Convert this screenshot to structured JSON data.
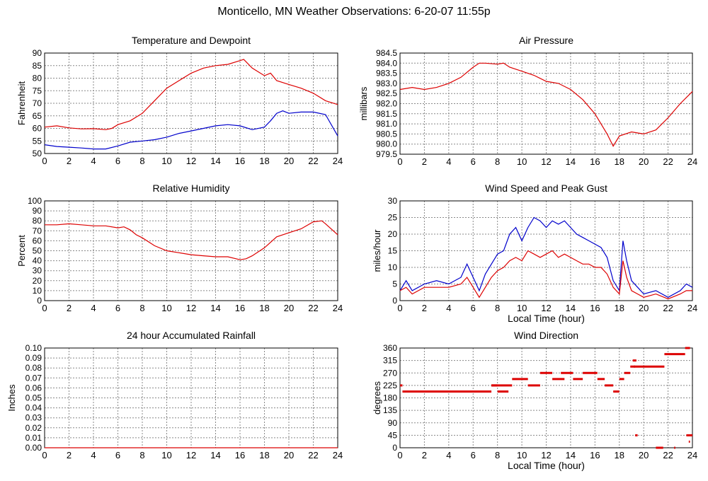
{
  "page": {
    "title": "Monticello, MN Weather Observations: 6-20-07 11:55p"
  },
  "colors": {
    "red": "#dd0000",
    "blue": "#0000cc",
    "grid": "#888888",
    "axis": "#000000"
  },
  "chart_data": [
    {
      "id": "temp",
      "type": "line",
      "title": "Temperature and Dewpoint",
      "xlabel": "",
      "ylabel": "Fahrenheit",
      "xlim": [
        0,
        24
      ],
      "ylim": [
        50,
        90
      ],
      "xticks": [
        0,
        2,
        4,
        6,
        8,
        10,
        12,
        14,
        16,
        18,
        20,
        22,
        24
      ],
      "yticks": [
        "50",
        "55",
        "60",
        "65",
        "70",
        "75",
        "80",
        "85",
        "90"
      ],
      "grid": true,
      "series": [
        {
          "color": "red",
          "points": [
            [
              0,
              60.5
            ],
            [
              1,
              61
            ],
            [
              2,
              60.2
            ],
            [
              3,
              59.8
            ],
            [
              4,
              59.9
            ],
            [
              5,
              59.5
            ],
            [
              5.5,
              60
            ],
            [
              6,
              61.5
            ],
            [
              7,
              63
            ],
            [
              8,
              66
            ],
            [
              9,
              71
            ],
            [
              10,
              76
            ],
            [
              11,
              79
            ],
            [
              12,
              82
            ],
            [
              13,
              84
            ],
            [
              14,
              85
            ],
            [
              15,
              85.5
            ],
            [
              16,
              87
            ],
            [
              16.3,
              87.5
            ],
            [
              17,
              84
            ],
            [
              18,
              81
            ],
            [
              18.5,
              82
            ],
            [
              19,
              79
            ],
            [
              20,
              77.5
            ],
            [
              21,
              76
            ],
            [
              22,
              74
            ],
            [
              23,
              71
            ],
            [
              24,
              69.5
            ]
          ]
        },
        {
          "color": "blue",
          "points": [
            [
              0,
              53.5
            ],
            [
              1,
              52.8
            ],
            [
              2,
              52.5
            ],
            [
              3,
              52.2
            ],
            [
              4,
              51.8
            ],
            [
              5,
              51.8
            ],
            [
              6,
              53
            ],
            [
              7,
              54.5
            ],
            [
              8,
              55
            ],
            [
              9,
              55.5
            ],
            [
              10,
              56.5
            ],
            [
              11,
              58
            ],
            [
              12,
              59
            ],
            [
              13,
              60
            ],
            [
              14,
              61
            ],
            [
              15,
              61.5
            ],
            [
              16,
              61
            ],
            [
              17,
              59.5
            ],
            [
              18,
              60.5
            ],
            [
              18.5,
              63
            ],
            [
              19,
              66
            ],
            [
              19.5,
              67
            ],
            [
              20,
              66
            ],
            [
              21,
              66.5
            ],
            [
              22,
              66.5
            ],
            [
              23,
              65.5
            ],
            [
              24,
              57
            ]
          ]
        }
      ]
    },
    {
      "id": "pressure",
      "type": "line",
      "title": "Air Pressure",
      "xlabel": "",
      "ylabel": "millibars",
      "xlim": [
        0,
        24
      ],
      "ylim": [
        979.5,
        984.5
      ],
      "xticks": [
        0,
        2,
        4,
        6,
        8,
        10,
        12,
        14,
        16,
        18,
        20,
        22,
        24
      ],
      "yticks": [
        "979.5",
        "980.0",
        "980.5",
        "981.0",
        "981.5",
        "982.0",
        "982.5",
        "983.0",
        "983.5",
        "984.0",
        "984.5"
      ],
      "grid": true,
      "series": [
        {
          "color": "red",
          "points": [
            [
              0,
              982.7
            ],
            [
              1,
              982.8
            ],
            [
              2,
              982.7
            ],
            [
              3,
              982.8
            ],
            [
              4,
              983.0
            ],
            [
              5,
              983.3
            ],
            [
              6,
              983.8
            ],
            [
              6.5,
              984.0
            ],
            [
              7,
              984.0
            ],
            [
              8,
              983.95
            ],
            [
              8.5,
              984.0
            ],
            [
              9,
              983.8
            ],
            [
              10,
              983.6
            ],
            [
              11,
              983.4
            ],
            [
              12,
              983.1
            ],
            [
              13,
              983.0
            ],
            [
              14,
              982.7
            ],
            [
              15,
              982.2
            ],
            [
              16,
              981.5
            ],
            [
              17,
              980.5
            ],
            [
              17.5,
              979.9
            ],
            [
              18,
              980.4
            ],
            [
              19,
              980.6
            ],
            [
              20,
              980.5
            ],
            [
              21,
              980.7
            ],
            [
              22,
              981.3
            ],
            [
              23,
              982.0
            ],
            [
              24,
              982.6
            ]
          ]
        }
      ]
    },
    {
      "id": "humidity",
      "type": "line",
      "title": "Relative Humidity",
      "xlabel": "",
      "ylabel": "Percent",
      "xlim": [
        0,
        24
      ],
      "ylim": [
        0,
        100
      ],
      "xticks": [
        0,
        2,
        4,
        6,
        8,
        10,
        12,
        14,
        16,
        18,
        20,
        22,
        24
      ],
      "yticks": [
        "0",
        "10",
        "20",
        "30",
        "40",
        "50",
        "60",
        "70",
        "80",
        "90",
        "100"
      ],
      "grid": true,
      "series": [
        {
          "color": "red",
          "points": [
            [
              0,
              76
            ],
            [
              1,
              76
            ],
            [
              2,
              77
            ],
            [
              3,
              76
            ],
            [
              4,
              75
            ],
            [
              5,
              75
            ],
            [
              6,
              73
            ],
            [
              6.5,
              74
            ],
            [
              7,
              71
            ],
            [
              7.5,
              66
            ],
            [
              8,
              63
            ],
            [
              9,
              55
            ],
            [
              10,
              50
            ],
            [
              11,
              48
            ],
            [
              12,
              46
            ],
            [
              13,
              45
            ],
            [
              14,
              44
            ],
            [
              15,
              44
            ],
            [
              16,
              41
            ],
            [
              16.5,
              42
            ],
            [
              17,
              45
            ],
            [
              18,
              53
            ],
            [
              19,
              64
            ],
            [
              20,
              68
            ],
            [
              21,
              72
            ],
            [
              22,
              79
            ],
            [
              22.7,
              80
            ],
            [
              23,
              77
            ],
            [
              24,
              66
            ]
          ]
        }
      ]
    },
    {
      "id": "wind",
      "type": "line",
      "title": "Wind Speed and Peak Gust",
      "xlabel": "Local Time (hour)",
      "ylabel": "miles/hour",
      "xlim": [
        0,
        24
      ],
      "ylim": [
        0,
        30
      ],
      "xticks": [
        0,
        2,
        4,
        6,
        8,
        10,
        12,
        14,
        16,
        18,
        20,
        22,
        24
      ],
      "yticks": [
        "0",
        "5",
        "10",
        "15",
        "20",
        "25",
        "30"
      ],
      "grid": true,
      "series": [
        {
          "color": "blue",
          "points": [
            [
              0,
              3
            ],
            [
              0.5,
              6
            ],
            [
              1,
              3
            ],
            [
              2,
              5
            ],
            [
              3,
              6
            ],
            [
              4,
              5
            ],
            [
              5,
              7
            ],
            [
              5.5,
              11
            ],
            [
              6,
              7
            ],
            [
              6.5,
              3
            ],
            [
              7,
              8
            ],
            [
              7.5,
              11
            ],
            [
              8,
              14
            ],
            [
              8.5,
              15
            ],
            [
              9,
              20
            ],
            [
              9.5,
              22
            ],
            [
              10,
              18
            ],
            [
              10.5,
              22
            ],
            [
              11,
              25
            ],
            [
              11.5,
              24
            ],
            [
              12,
              22
            ],
            [
              12.5,
              24
            ],
            [
              13,
              23
            ],
            [
              13.5,
              24
            ],
            [
              14,
              22
            ],
            [
              14.5,
              20
            ],
            [
              15,
              19
            ],
            [
              15.5,
              18
            ],
            [
              16,
              17
            ],
            [
              16.5,
              16
            ],
            [
              17,
              13
            ],
            [
              17.5,
              6
            ],
            [
              18,
              3
            ],
            [
              18.3,
              18
            ],
            [
              18.6,
              12
            ],
            [
              19,
              6
            ],
            [
              19.5,
              4
            ],
            [
              20,
              2
            ],
            [
              21,
              3
            ],
            [
              22,
              1
            ],
            [
              23,
              3
            ],
            [
              23.5,
              5
            ],
            [
              24,
              4
            ]
          ]
        },
        {
          "color": "red",
          "points": [
            [
              0,
              3
            ],
            [
              0.5,
              4
            ],
            [
              1,
              2
            ],
            [
              2,
              4
            ],
            [
              3,
              4
            ],
            [
              4,
              4
            ],
            [
              5,
              5
            ],
            [
              5.5,
              7
            ],
            [
              6,
              4
            ],
            [
              6.5,
              1
            ],
            [
              7,
              4
            ],
            [
              7.5,
              7
            ],
            [
              8,
              9
            ],
            [
              8.5,
              10
            ],
            [
              9,
              12
            ],
            [
              9.5,
              13
            ],
            [
              10,
              12
            ],
            [
              10.5,
              15
            ],
            [
              11,
              14
            ],
            [
              11.5,
              13
            ],
            [
              12,
              14
            ],
            [
              12.5,
              15
            ],
            [
              13,
              13
            ],
            [
              13.5,
              14
            ],
            [
              14,
              13
            ],
            [
              14.5,
              12
            ],
            [
              15,
              11
            ],
            [
              15.5,
              11
            ],
            [
              16,
              10
            ],
            [
              16.5,
              10
            ],
            [
              17,
              8
            ],
            [
              17.5,
              4
            ],
            [
              18,
              2
            ],
            [
              18.3,
              12
            ],
            [
              18.6,
              7
            ],
            [
              19,
              3
            ],
            [
              19.5,
              2
            ],
            [
              20,
              1
            ],
            [
              21,
              2
            ],
            [
              22,
              0.5
            ],
            [
              23,
              2
            ],
            [
              23.5,
              3
            ],
            [
              24,
              3
            ]
          ]
        }
      ]
    },
    {
      "id": "rain",
      "type": "line",
      "title": "24 hour Accumulated Rainfall",
      "xlabel": "",
      "ylabel": "Inches",
      "xlim": [
        0,
        24
      ],
      "ylim": [
        0,
        0.1
      ],
      "xticks": [
        0,
        2,
        4,
        6,
        8,
        10,
        12,
        14,
        16,
        18,
        20,
        22,
        24
      ],
      "yticks": [
        "0.00",
        "0.01",
        "0.02",
        "0.03",
        "0.04",
        "0.05",
        "0.06",
        "0.07",
        "0.08",
        "0.09",
        "0.10"
      ],
      "grid": true,
      "series": [
        {
          "color": "red",
          "points": [
            [
              0,
              0
            ],
            [
              24,
              0
            ]
          ]
        }
      ]
    },
    {
      "id": "direction",
      "type": "scatter",
      "title": "Wind Direction",
      "xlabel": "Local Time (hour)",
      "ylabel": "degrees",
      "xlim": [
        0,
        24
      ],
      "ylim": [
        0,
        360
      ],
      "xticks": [
        0,
        2,
        4,
        6,
        8,
        10,
        12,
        14,
        16,
        18,
        20,
        22,
        24
      ],
      "yticks": [
        "0",
        "45",
        "90",
        "135",
        "180",
        "225",
        "270",
        "315",
        "360"
      ],
      "grid": true,
      "series": [
        {
          "color": "red",
          "segments": [
            [
              0,
              0.2,
              225
            ],
            [
              0.2,
              7.5,
              203
            ],
            [
              7.5,
              8,
              225
            ],
            [
              8,
              8.9,
              203
            ],
            [
              7.5,
              9.2,
              225
            ],
            [
              9.2,
              10.5,
              248
            ],
            [
              10.5,
              11.5,
              225
            ],
            [
              11.5,
              12.5,
              270
            ],
            [
              12.5,
              13.5,
              248
            ],
            [
              13.2,
              14.2,
              270
            ],
            [
              14.2,
              15,
              248
            ],
            [
              15,
              16.2,
              270
            ],
            [
              16.2,
              16.8,
              248
            ],
            [
              16.8,
              17.5,
              225
            ],
            [
              17.5,
              18,
              203
            ],
            [
              18,
              18.4,
              248
            ],
            [
              18.4,
              18.9,
              270
            ],
            [
              18.9,
              19.3,
              293
            ],
            [
              19.2,
              21.7,
              293
            ],
            [
              19.1,
              19.4,
              315
            ],
            [
              21.7,
              23.4,
              338
            ],
            [
              23.4,
              23.8,
              360
            ],
            [
              19.3,
              19.5,
              45
            ],
            [
              21.0,
              21.6,
              0
            ],
            [
              22.5,
              22.6,
              0
            ],
            [
              23.5,
              24,
              45
            ],
            [
              23.7,
              23.8,
              22
            ]
          ]
        }
      ]
    }
  ]
}
